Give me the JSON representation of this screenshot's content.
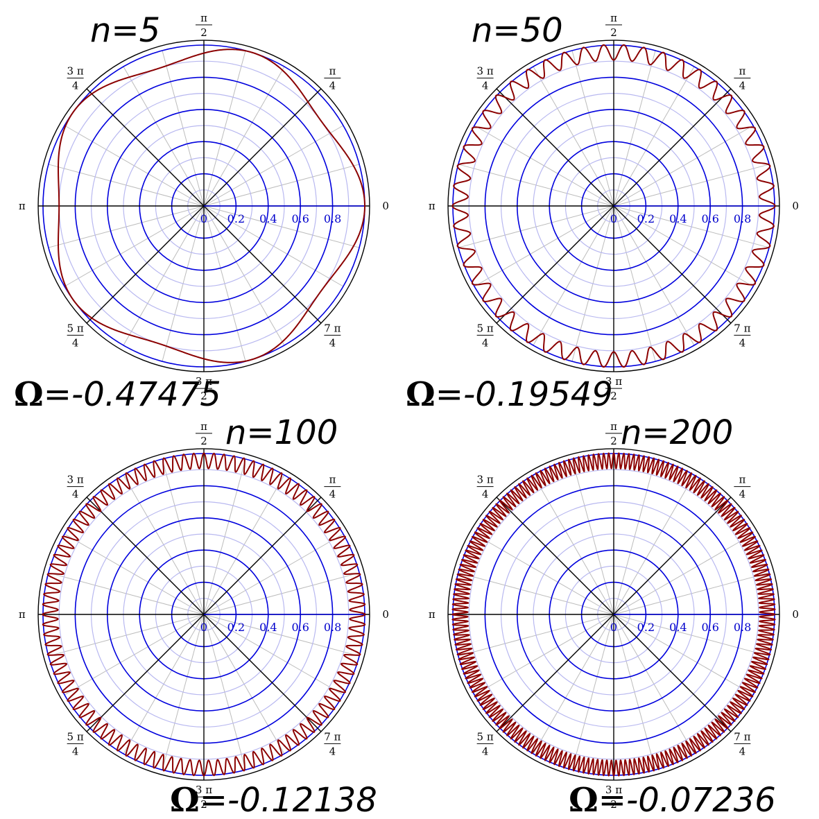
{
  "chart_data": [
    {
      "type": "line",
      "coordinate_system": "polar",
      "panel": "top-left",
      "title": "n=5",
      "annotation": "Ω=-0.47475",
      "n": 5,
      "omega": -0.47475,
      "r_base": 0.95,
      "amplitude": 0.05,
      "radial_range": [
        0,
        1
      ],
      "radial_ticks": [
        "0",
        "0.2",
        "0.4",
        "0.6",
        "0.8"
      ],
      "angle_ticks": [
        {
          "value": 0,
          "num": "0",
          "den": ""
        },
        {
          "value": 0.7854,
          "num": "π",
          "den": "4"
        },
        {
          "value": 1.5708,
          "num": "π",
          "den": "2"
        },
        {
          "value": 2.3562,
          "num": "3 π",
          "den": "4"
        },
        {
          "value": 3.1416,
          "num": "π",
          "den": ""
        },
        {
          "value": 3.927,
          "num": "5 π",
          "den": "4"
        },
        {
          "value": 4.7124,
          "num": "3 π",
          "den": "2"
        },
        {
          "value": 5.4978,
          "num": "7 π",
          "den": "4"
        }
      ],
      "grid": true
    },
    {
      "type": "line",
      "coordinate_system": "polar",
      "panel": "top-right",
      "title": "n=50",
      "annotation": "Ω=-0.19549",
      "n": 50,
      "omega": -0.19549,
      "r_base": 0.955,
      "amplitude": 0.048,
      "radial_range": [
        0,
        1
      ],
      "radial_ticks": [
        "0",
        "0.2",
        "0.4",
        "0.6",
        "0.8"
      ],
      "angle_ticks": [
        {
          "value": 0,
          "num": "0",
          "den": ""
        },
        {
          "value": 0.7854,
          "num": "π",
          "den": "4"
        },
        {
          "value": 1.5708,
          "num": "π",
          "den": "2"
        },
        {
          "value": 2.3562,
          "num": "3 π",
          "den": "4"
        },
        {
          "value": 3.1416,
          "num": "π",
          "den": ""
        },
        {
          "value": 3.927,
          "num": "5 π",
          "den": "4"
        },
        {
          "value": 4.7124,
          "num": "3 π",
          "den": "2"
        },
        {
          "value": 5.4978,
          "num": "7 π",
          "den": "4"
        }
      ],
      "grid": true
    },
    {
      "type": "line",
      "coordinate_system": "polar",
      "panel": "bottom-left",
      "title": "n=100",
      "annotation": "Ω=-0.12138",
      "n": 100,
      "omega": -0.12138,
      "r_base": 0.955,
      "amplitude": 0.048,
      "radial_range": [
        0,
        1
      ],
      "radial_ticks": [
        "0",
        "0.2",
        "0.4",
        "0.6",
        "0.8"
      ],
      "angle_ticks": [
        {
          "value": 0,
          "num": "0",
          "den": ""
        },
        {
          "value": 0.7854,
          "num": "π",
          "den": "4"
        },
        {
          "value": 1.5708,
          "num": "π",
          "den": "2"
        },
        {
          "value": 2.3562,
          "num": "3 π",
          "den": "4"
        },
        {
          "value": 3.1416,
          "num": "π",
          "den": ""
        },
        {
          "value": 3.927,
          "num": "5 π",
          "den": "4"
        },
        {
          "value": 4.7124,
          "num": "3 π",
          "den": "2"
        },
        {
          "value": 5.4978,
          "num": "7 π",
          "den": "4"
        }
      ],
      "grid": true
    },
    {
      "type": "line",
      "coordinate_system": "polar",
      "panel": "bottom-right",
      "title": "n=200",
      "annotation": "Ω=-0.07236",
      "n": 200,
      "omega": -0.07236,
      "r_base": 0.955,
      "amplitude": 0.048,
      "radial_range": [
        0,
        1
      ],
      "radial_ticks": [
        "0",
        "0.2",
        "0.4",
        "0.6",
        "0.8"
      ],
      "angle_ticks": [
        {
          "value": 0,
          "num": "0",
          "den": ""
        },
        {
          "value": 0.7854,
          "num": "π",
          "den": "4"
        },
        {
          "value": 1.5708,
          "num": "π",
          "den": "2"
        },
        {
          "value": 2.3562,
          "num": "3 π",
          "den": "4"
        },
        {
          "value": 3.1416,
          "num": "π",
          "den": ""
        },
        {
          "value": 3.927,
          "num": "5 π",
          "den": "4"
        },
        {
          "value": 4.7124,
          "num": "3 π",
          "den": "2"
        },
        {
          "value": 5.4978,
          "num": "7 π",
          "den": "4"
        }
      ],
      "grid": true
    }
  ],
  "colors": {
    "curve": "#8b0000",
    "major_grid": "#0000dd",
    "minor_grid_circles": "#b8b8f0",
    "fine_grid": "#bcbcbc",
    "axes": "#000000",
    "radial_tick_labels": "#0000cc"
  }
}
